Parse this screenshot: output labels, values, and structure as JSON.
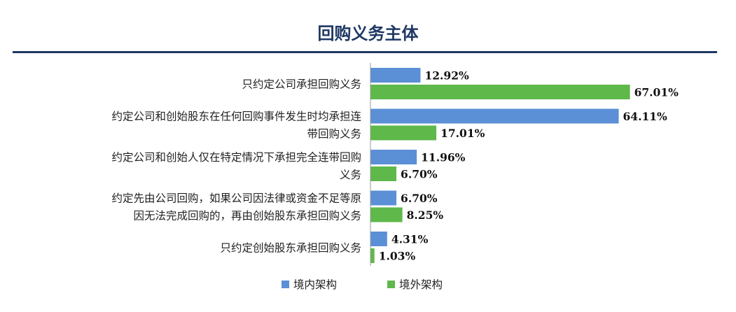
{
  "chart_data": {
    "type": "bar",
    "orientation": "horizontal",
    "title": "回购义务主体",
    "categories": [
      "只约定公司承担回购义务",
      "约定公司和创始股东在任何回购事件发生时均承担连带回购义务",
      "约定公司和创始人仅在特定情况下承担完全连带回购义务",
      "约定先由公司回购，如果公司因法律或资金不足等原因无法完成回购的，再由创始股东承担回购义务",
      "只约定创始股东承担回购义务"
    ],
    "category_lines": [
      [
        "只约定公司承担回购义务"
      ],
      [
        "约定公司和创始股东在任何回购事件发生时均承担连",
        "带回购义务"
      ],
      [
        "约定公司和创始人仅在特定情况下承担完全连带回购",
        "义务"
      ],
      [
        "约定先由公司回购，如果公司因法律或资金不足等原",
        "因无法完成回购的，再由创始股东承担回购义务"
      ],
      [
        "只约定创始股东承担回购义务"
      ]
    ],
    "series": [
      {
        "name": "境内架构",
        "color": "#5b8fd6",
        "values": [
          12.92,
          64.11,
          11.96,
          6.7,
          4.31
        ],
        "labels": [
          "12.92%",
          "64.11%",
          "11.96%",
          "6.70%",
          "4.31%"
        ]
      },
      {
        "name": "境外架构",
        "color": "#5fb84a",
        "values": [
          67.01,
          17.01,
          6.7,
          8.25,
          1.03
        ],
        "labels": [
          "67.01%",
          "17.01%",
          "6.70%",
          "8.25%",
          "1.03%"
        ]
      }
    ],
    "value_unit": "%",
    "legend_position": "bottom",
    "grid": false
  }
}
